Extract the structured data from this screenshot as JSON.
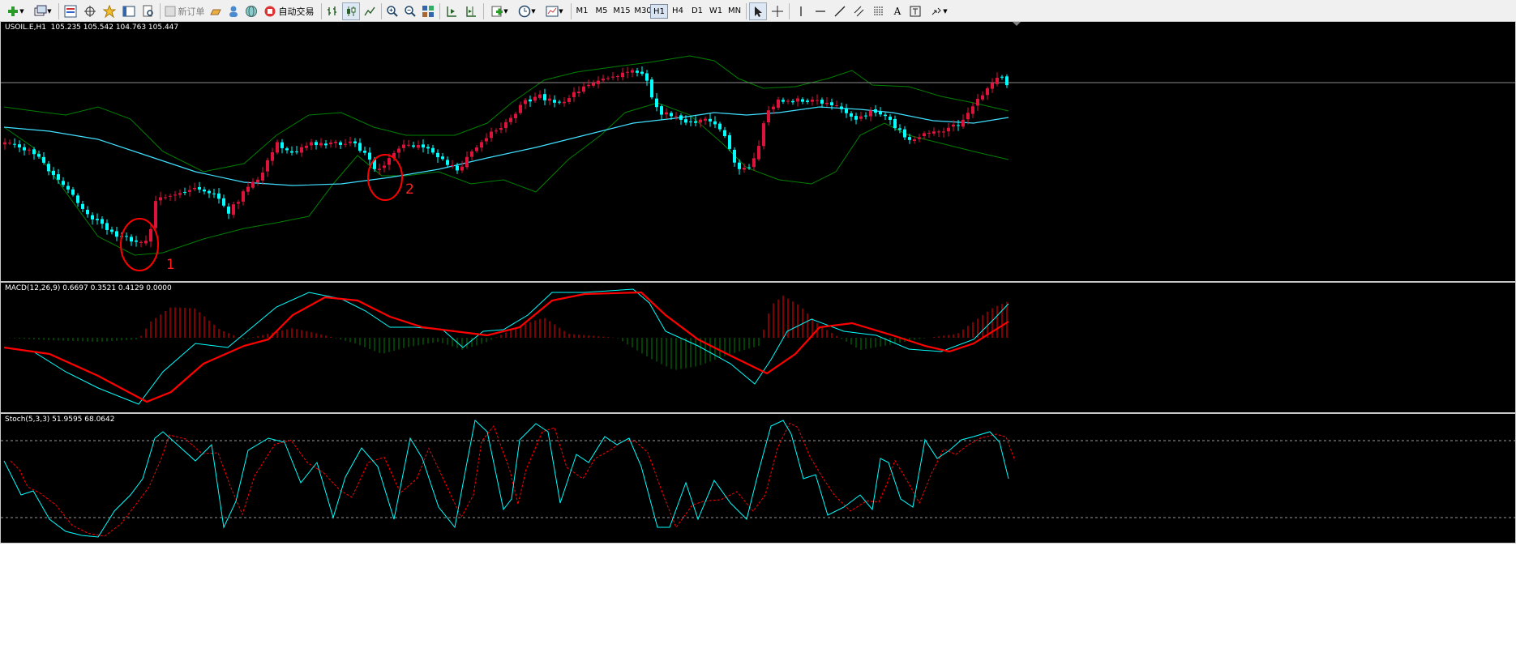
{
  "toolbar": {
    "new_order_label": "新订单",
    "autotrade_label": "自动交易",
    "timeframes": [
      "M1",
      "M5",
      "M15",
      "M30",
      "H1",
      "H4",
      "D1",
      "W1",
      "MN"
    ],
    "active_timeframe": "H1",
    "text_tool_label": "A"
  },
  "main_chart": {
    "header": "USOIL.E,H1  105.235 105.542 104.763 105.447",
    "annotations": [
      "1",
      "2"
    ],
    "colors": {
      "bull": "#dc143c",
      "bear": "#00ffff",
      "bands": "#008000",
      "ma": "#40e0ff",
      "annotation": "#ff0000"
    }
  },
  "macd_pane": {
    "header": "MACD(12,26,9) 0.6697 0.3521 0.4129 0.0000",
    "colors": {
      "hist_up": "#ff0000",
      "hist_down": "#008000",
      "main": "#00ffff",
      "signal": "#ff0000"
    }
  },
  "stoch_pane": {
    "header": "Stoch(5,3,3) 51.9595 68.0642",
    "colors": {
      "main": "#00ffff",
      "signal": "#ff0000"
    }
  }
}
